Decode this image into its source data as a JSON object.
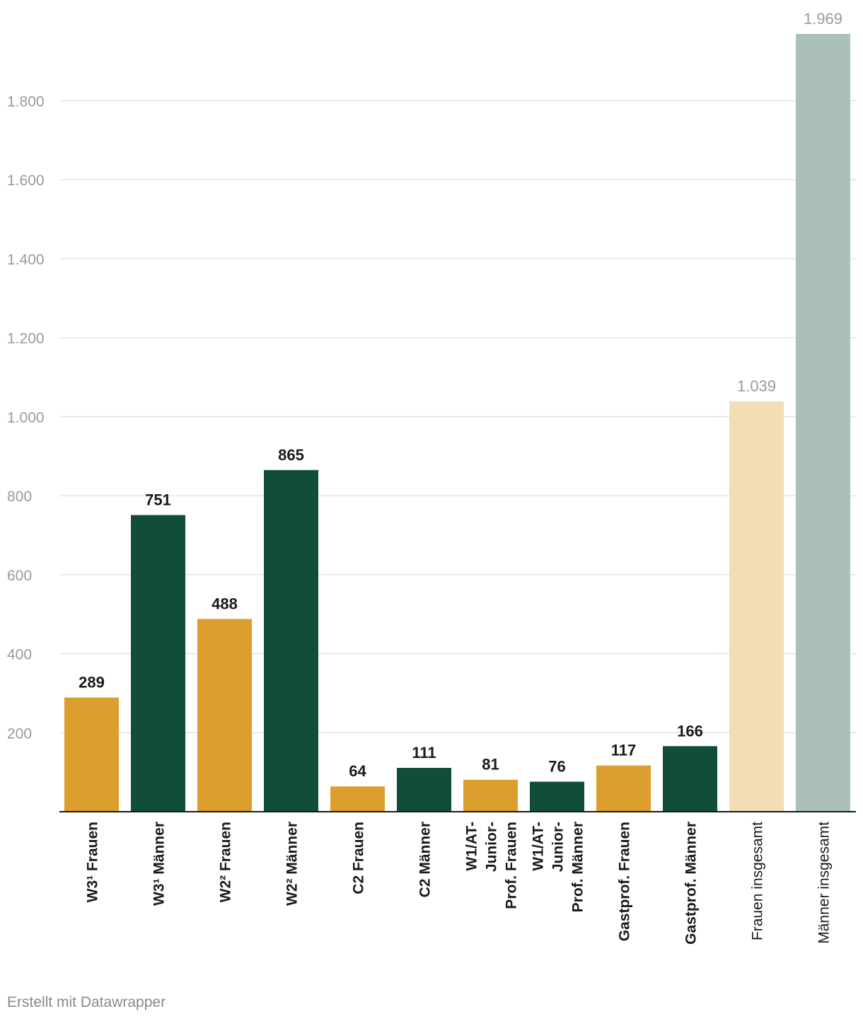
{
  "chart_data": {
    "type": "bar",
    "ylim": [
      0,
      1969
    ],
    "yticks": [
      200,
      400,
      600,
      800,
      1000,
      1200,
      1400,
      1600,
      1800
    ],
    "ytick_labels": [
      "200",
      "400",
      "600",
      "800",
      "1.000",
      "1.200",
      "1.400",
      "1.600",
      "1.800"
    ],
    "grid": true,
    "categories": [
      {
        "label_lines": [
          "W3¹ Frauen"
        ],
        "bold": true
      },
      {
        "label_lines": [
          "W3¹ Männer"
        ],
        "bold": true
      },
      {
        "label_lines": [
          "W2² Frauen"
        ],
        "bold": true
      },
      {
        "label_lines": [
          "W2² Männer"
        ],
        "bold": true
      },
      {
        "label_lines": [
          "C2 Frauen"
        ],
        "bold": true
      },
      {
        "label_lines": [
          "C2 Männer"
        ],
        "bold": true
      },
      {
        "label_lines": [
          "W1/AT-",
          "Junior-",
          "Prof. Frauen"
        ],
        "bold": true
      },
      {
        "label_lines": [
          "W1/AT-",
          "Junior-",
          "Prof. Männer"
        ],
        "bold": true
      },
      {
        "label_lines": [
          "Gastprof. Frauen"
        ],
        "bold": true
      },
      {
        "label_lines": [
          "Gastprof. Männer"
        ],
        "bold": true
      },
      {
        "label_lines": [
          "Frauen insgesamt"
        ],
        "bold": false
      },
      {
        "label_lines": [
          "Männer insgesamt"
        ],
        "bold": false
      }
    ],
    "values": [
      289,
      751,
      488,
      865,
      64,
      111,
      81,
      76,
      117,
      166,
      1039,
      1969
    ],
    "value_labels": [
      "289",
      "751",
      "488",
      "865",
      "64",
      "111",
      "81",
      "76",
      "117",
      "166",
      "1.039",
      "1.969"
    ],
    "colors": [
      "#dc9e2c",
      "#104e3a",
      "#dc9e2c",
      "#104e3a",
      "#dc9e2c",
      "#104e3a",
      "#dc9e2c",
      "#104e3a",
      "#dc9e2c",
      "#104e3a",
      "#f2ddb4",
      "#abc0b8"
    ],
    "value_label_colors": [
      "#1a1a1a",
      "#1a1a1a",
      "#1a1a1a",
      "#1a1a1a",
      "#1a1a1a",
      "#1a1a1a",
      "#1a1a1a",
      "#1a1a1a",
      "#1a1a1a",
      "#1a1a1a",
      "#9a9a9a",
      "#9a9a9a"
    ]
  },
  "footer": {
    "text": "Erstellt mit Datawrapper"
  }
}
